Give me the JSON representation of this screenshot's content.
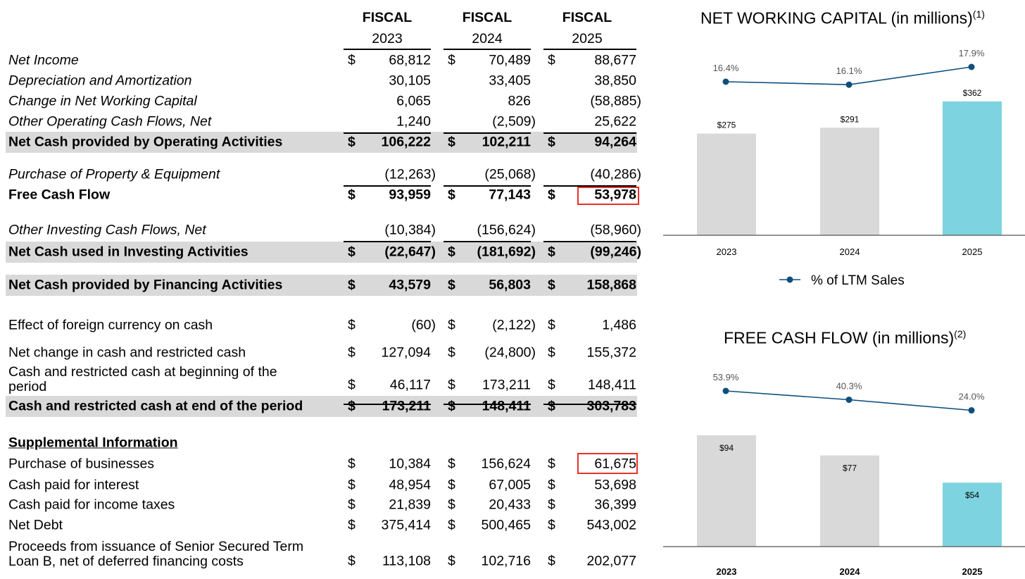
{
  "table": {
    "headers": [
      {
        "top": "FISCAL",
        "year": "2023"
      },
      {
        "top": "FISCAL",
        "year": "2024"
      },
      {
        "top": "FISCAL",
        "year": "2025"
      }
    ],
    "rows": [
      {
        "label": "Net Income",
        "dollar": [
          "$",
          "$",
          "$"
        ],
        "values": [
          "68,812",
          "70,489",
          "88,677"
        ]
      },
      {
        "label": "Depreciation and Amortization",
        "dollar": [
          "",
          "",
          ""
        ],
        "values": [
          "30,105",
          "33,405",
          "38,850"
        ]
      },
      {
        "label": "Change in Net Working Capital",
        "dollar": [
          "",
          "",
          ""
        ],
        "values": [
          "6,065",
          "826",
          "(58,885)"
        ]
      },
      {
        "label": "Other Operating Cash Flows, Net",
        "dollar": [
          "",
          "",
          ""
        ],
        "values": [
          "1,240",
          "(2,509)",
          "25,622"
        ]
      },
      {
        "label": "Net Cash provided by Operating Activities",
        "dollar": [
          "$",
          "$",
          "$"
        ],
        "values": [
          "106,222",
          "102,211",
          "94,264"
        ]
      },
      {
        "label": "Purchase of Property & Equipment",
        "dollar": [
          "",
          "",
          ""
        ],
        "values": [
          "(12,263)",
          "(25,068)",
          "(40,286)"
        ]
      },
      {
        "label": "Free Cash Flow",
        "dollar": [
          "$",
          "$",
          "$"
        ],
        "values": [
          "93,959",
          "77,143",
          "53,978"
        ]
      },
      {
        "label": "Other Investing Cash Flows, Net",
        "dollar": [
          "",
          "",
          ""
        ],
        "values": [
          "(10,384)",
          "(156,624)",
          "(58,960)"
        ]
      },
      {
        "label": "Net Cash used in Investing Activities",
        "dollar": [
          "$",
          "$",
          "$"
        ],
        "values": [
          "(22,647)",
          "(181,692)",
          "(99,246)"
        ]
      },
      {
        "label": "Net Cash provided by Financing Activities",
        "dollar": [
          "$",
          "$",
          "$"
        ],
        "values": [
          "43,579",
          "56,803",
          "158,868"
        ]
      },
      {
        "label": "Effect of foreign currency on cash",
        "dollar": [
          "$",
          "$",
          "$"
        ],
        "values": [
          "(60)",
          "(2,122)",
          "1,486"
        ]
      },
      {
        "label": "Net change in cash and restricted cash",
        "dollar": [
          "$",
          "$",
          "$"
        ],
        "values": [
          "127,094",
          "(24,800)",
          "155,372"
        ]
      },
      {
        "label": "Cash and restricted cash at beginning of the\nperiod",
        "dollar": [
          "$",
          "$",
          "$"
        ],
        "values": [
          "46,117",
          "173,211",
          "148,411"
        ]
      },
      {
        "label": "Cash and restricted cash at end of the period",
        "dollar": [
          "$",
          "$",
          "$"
        ],
        "values": [
          "173,211",
          "148,411",
          "303,783"
        ]
      },
      {
        "label": "Supplemental Information",
        "dollar": [
          "",
          "",
          ""
        ],
        "values": [
          "",
          "",
          ""
        ]
      },
      {
        "label": "Purchase of businesses",
        "dollar": [
          "$",
          "$",
          "$"
        ],
        "values": [
          "10,384",
          "156,624",
          "61,675"
        ]
      },
      {
        "label": "Cash paid for interest",
        "dollar": [
          "$",
          "$",
          "$"
        ],
        "values": [
          "48,954",
          "67,005",
          "53,698"
        ]
      },
      {
        "label": "Cash paid for income taxes",
        "dollar": [
          "$",
          "$",
          "$"
        ],
        "values": [
          "21,839",
          "20,433",
          "36,399"
        ]
      },
      {
        "label": "Net Debt",
        "dollar": [
          "$",
          "$",
          "$"
        ],
        "values": [
          "375,414",
          "500,465",
          "543,002"
        ]
      },
      {
        "label": "Proceeds from issuance of Senior Secured Term\nLoan B, net of deferred financing costs",
        "dollar": [
          "$",
          "$",
          "$"
        ],
        "values": [
          "113,108",
          "102,716",
          "202,077"
        ]
      }
    ],
    "highlight_color": "#e8312a",
    "shade_color": "#d9d9d9"
  },
  "chart_data": [
    {
      "type": "bar",
      "title": "NET WORKING CAPITAL (in millions)",
      "title_note": "(1)",
      "categories": [
        "2023",
        "2024",
        "2025"
      ],
      "values": [
        275,
        291,
        362
      ],
      "value_labels": [
        "$275",
        "$291",
        "$362"
      ],
      "bar_colors": [
        "#d9d9d9",
        "#d9d9d9",
        "#7dd4e0"
      ],
      "line_series": {
        "name": "% of LTM Sales",
        "values": [
          16.4,
          16.1,
          17.9
        ],
        "labels": [
          "16.4%",
          "16.1%",
          "17.9%"
        ],
        "color": "#0d4f7c"
      },
      "legend": "bottom"
    },
    {
      "type": "bar",
      "title": "FREE CASH FLOW (in millions)",
      "title_note": "(2)",
      "categories": [
        "2023",
        "2024",
        "2025"
      ],
      "values": [
        94,
        77,
        54
      ],
      "value_labels": [
        "$94",
        "$77",
        "$54"
      ],
      "bar_colors": [
        "#d9d9d9",
        "#d9d9d9",
        "#7dd4e0"
      ],
      "line_series": {
        "values": [
          53.9,
          40.3,
          24.0
        ],
        "labels": [
          "53.9%",
          "40.3%",
          "24.0%"
        ],
        "color": "#0d4f7c"
      }
    }
  ]
}
